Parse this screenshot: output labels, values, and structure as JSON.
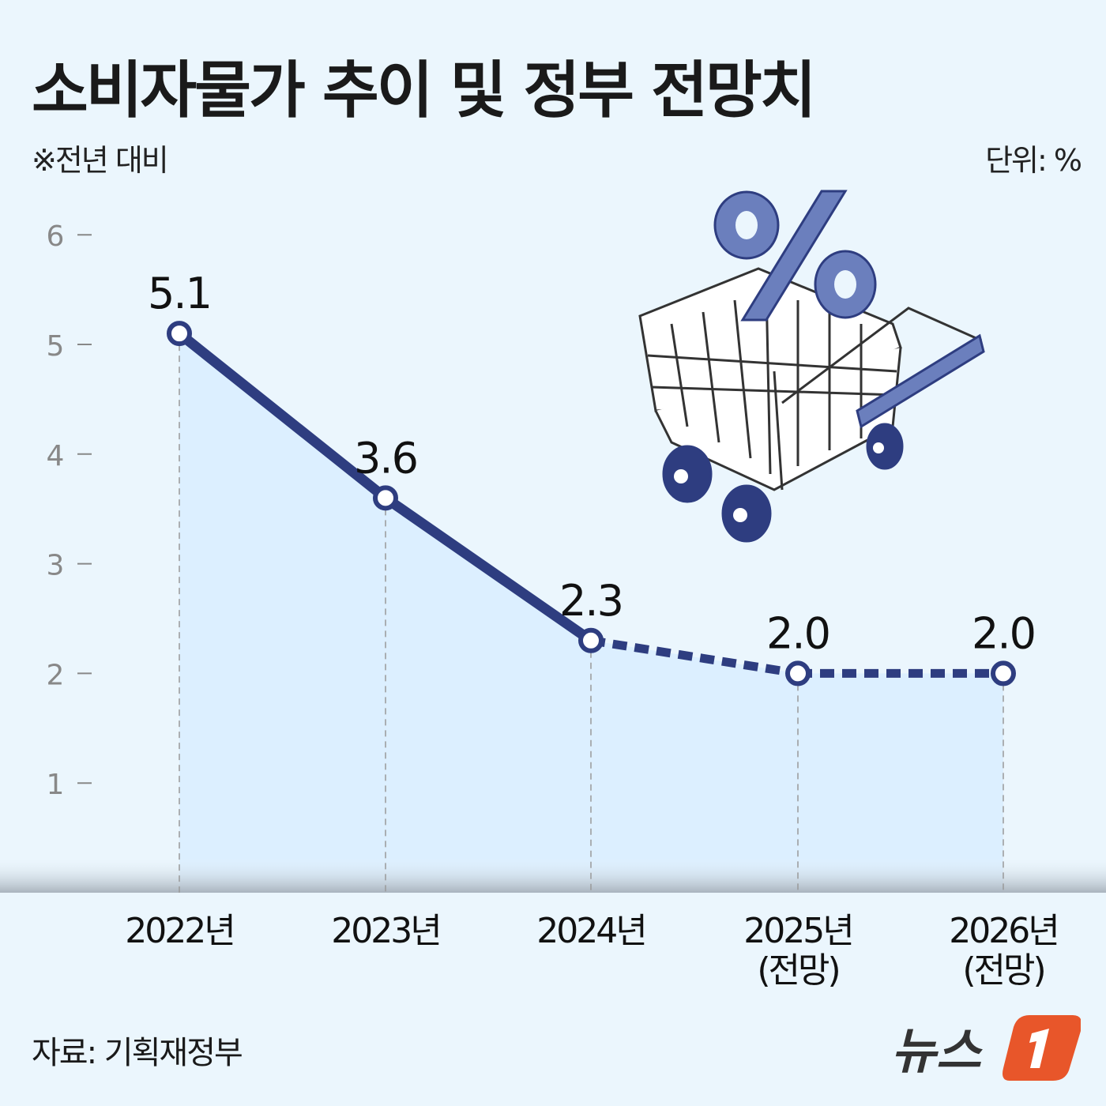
{
  "title": "소비자물가 추이 및 정부 전망치",
  "note": "※전년 대비",
  "unit": "단위:  %",
  "source": "자료: 기획재정부",
  "logo_text": "뉴스1",
  "colors": {
    "line": "#2e3d80",
    "area": "#dcefff",
    "background": "#ebf6fd",
    "logo": "#e8562a",
    "illustration": "#6b7fbd"
  },
  "illustration": "shopping-cart-with-percent-sign",
  "chart_data": {
    "type": "line",
    "categories": [
      "2022년",
      "2023년",
      "2024년",
      "2025년\n(전망)",
      "2026년\n(전망)"
    ],
    "category_lines": [
      [
        "2022년"
      ],
      [
        "2023년"
      ],
      [
        "2024년"
      ],
      [
        "2025년",
        "(전망)"
      ],
      [
        "2026년",
        "(전망)"
      ]
    ],
    "values": [
      5.1,
      3.6,
      2.3,
      2.0,
      2.0
    ],
    "labels": [
      "5.1",
      "3.6",
      "2.3",
      "2.0",
      "2.0"
    ],
    "forecast_from_index": 2,
    "yticks": [
      1,
      2,
      3,
      4,
      5,
      6
    ],
    "ylim": [
      0,
      6
    ],
    "grid": false,
    "area_fill": true
  }
}
